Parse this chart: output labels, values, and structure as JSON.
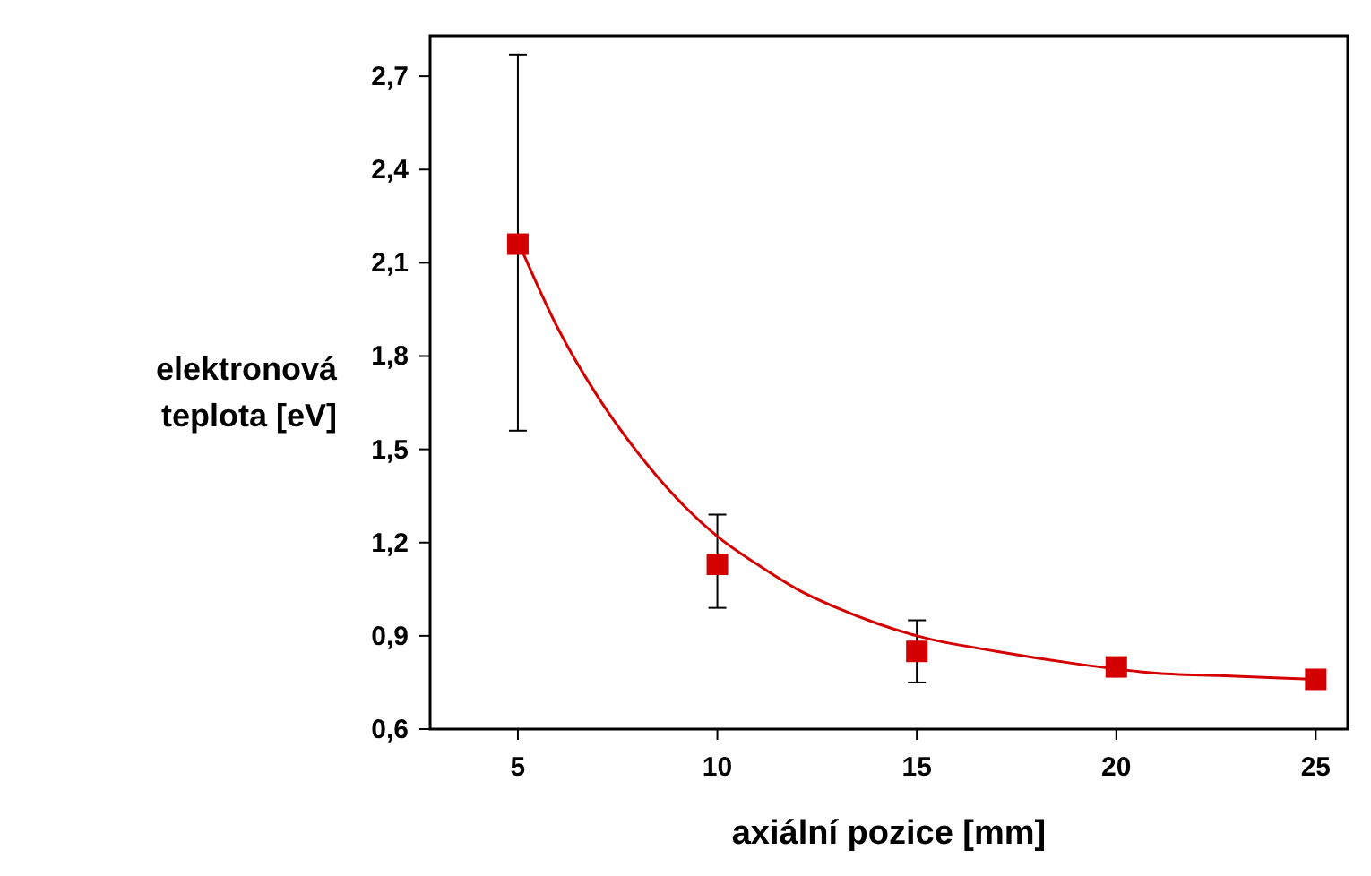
{
  "chart_data": {
    "type": "scatter",
    "xlabel": "axiální pozice [mm]",
    "ylabel": "elektronová\nteplota [eV]",
    "xlim": [
      2.8,
      25.8
    ],
    "xticks": [
      5,
      10,
      15,
      20,
      25
    ],
    "ylim": [
      0.6,
      2.83
    ],
    "yticks": [
      {
        "value": 0.6,
        "label": "0,6"
      },
      {
        "value": 0.9,
        "label": "0,9"
      },
      {
        "value": 1.2,
        "label": "1,2"
      },
      {
        "value": 1.5,
        "label": "1,5"
      },
      {
        "value": 1.8,
        "label": "1,8"
      },
      {
        "value": 2.1,
        "label": "2,1"
      },
      {
        "value": 2.4,
        "label": "2,4"
      },
      {
        "value": 2.7,
        "label": "2,7"
      }
    ],
    "grid": false,
    "series": [
      {
        "color": "#d40000",
        "marker": "square",
        "x": [
          5,
          10,
          15,
          20,
          25
        ],
        "values": [
          2.16,
          1.13,
          0.85,
          0.8,
          0.76
        ],
        "errors": [
          [
            1.56,
            2.77
          ],
          [
            0.99,
            1.29
          ],
          [
            0.75,
            0.95
          ],
          null,
          null
        ]
      },
      {
        "type": "line",
        "color": "#d40000",
        "marker": "none",
        "line_style": "solid",
        "x": [
          5,
          6,
          7,
          8,
          9,
          10,
          11,
          12,
          13,
          14,
          15,
          17,
          19,
          21,
          23,
          25
        ],
        "values": [
          2.17,
          1.89,
          1.67,
          1.49,
          1.34,
          1.22,
          1.13,
          1.05,
          0.99,
          0.94,
          0.9,
          0.85,
          0.81,
          0.78,
          0.77,
          0.76
        ]
      }
    ]
  }
}
